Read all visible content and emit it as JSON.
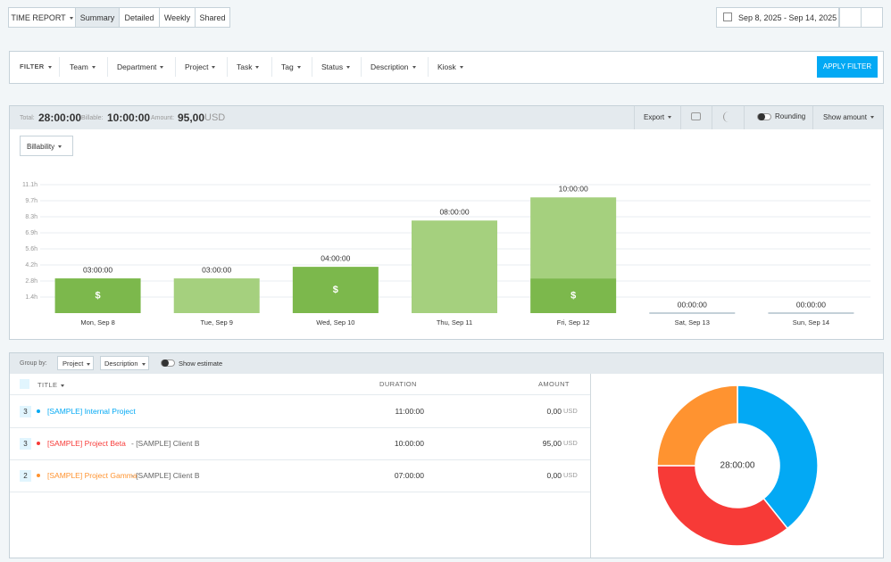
{
  "header": {
    "report_menu": "TIME REPORT",
    "tabs": [
      "Summary",
      "Detailed",
      "Weekly",
      "Shared"
    ],
    "date_range": "Sep 8, 2025 - Sep 14, 2025"
  },
  "filters": {
    "label": "FILTER",
    "items": [
      "Team",
      "Department",
      "Project",
      "Task",
      "Tag",
      "Status",
      "Description",
      "Kiosk"
    ],
    "apply": "APPLY FILTER"
  },
  "summary": {
    "total_label": "Total:",
    "total": "28:00:00",
    "billable_label": "Billable:",
    "billable": "10:00:00",
    "amount_label": "Amount:",
    "amount": "95,00",
    "currency": "USD",
    "export": "Export",
    "rounding": "Rounding",
    "show_amount": "Show amount",
    "chart_mode": "Billability"
  },
  "chart_data": [
    {
      "type": "bar",
      "stacked": true,
      "categories": [
        "Mon, Sep 8",
        "Tue, Sep 9",
        "Wed, Sep 10",
        "Thu, Sep 11",
        "Fri, Sep 12",
        "Sat, Sep 13",
        "Sun, Sep 14"
      ],
      "series": [
        {
          "color": "#7cb84c",
          "values": [
            3,
            0,
            4,
            0,
            3,
            0,
            0
          ],
          "billable_icon": "$"
        },
        {
          "color": "#a5d07e",
          "values": [
            0,
            3,
            0,
            8,
            7,
            0,
            0
          ]
        }
      ],
      "total_labels": [
        "03:00:00",
        "03:00:00",
        "04:00:00",
        "08:00:00",
        "10:00:00",
        "00:00:00",
        "00:00:00"
      ],
      "ylim": [
        0,
        11.1
      ],
      "yticks": [
        {
          "value": 1.3875,
          "label": "1.4h"
        },
        {
          "value": 2.775,
          "label": "2.8h"
        },
        {
          "value": 4.1625,
          "label": "4.2h"
        },
        {
          "value": 5.55,
          "label": "5.6h"
        },
        {
          "value": 6.9375,
          "label": "6.9h"
        },
        {
          "value": 8.325,
          "label": "8.3h"
        },
        {
          "value": 9.7125,
          "label": "9.7h"
        },
        {
          "value": 11.1,
          "label": "11.1h"
        }
      ],
      "grid": true
    },
    {
      "type": "donut",
      "center_label": "28:00:00",
      "values": [
        11,
        10,
        7
      ],
      "colors": [
        "#03a9f4",
        "#f73a37",
        "#ff9330"
      ]
    }
  ],
  "grouping": {
    "label": "Group by:",
    "first": "Project",
    "second": "Description",
    "estimate": "Show estimate"
  },
  "table": {
    "columns": [
      "TITLE",
      "DURATION",
      "AMOUNT"
    ],
    "rows": [
      {
        "count": "3",
        "color": "#03a9f4",
        "project": "[SAMPLE] Internal Project",
        "client": "",
        "duration": "11:00:00",
        "amount": "0,00",
        "currency": "USD"
      },
      {
        "count": "3",
        "color": "#f73a37",
        "project": "[SAMPLE] Project Beta",
        "client": "- [SAMPLE] Client B",
        "duration": "10:00:00",
        "amount": "95,00",
        "currency": "USD"
      },
      {
        "count": "2",
        "color": "#ff9330",
        "project": "[SAMPLE] Project Gamma",
        "client": "- [SAMPLE] Client B",
        "duration": "07:00:00",
        "amount": "0,00",
        "currency": "USD"
      }
    ]
  }
}
